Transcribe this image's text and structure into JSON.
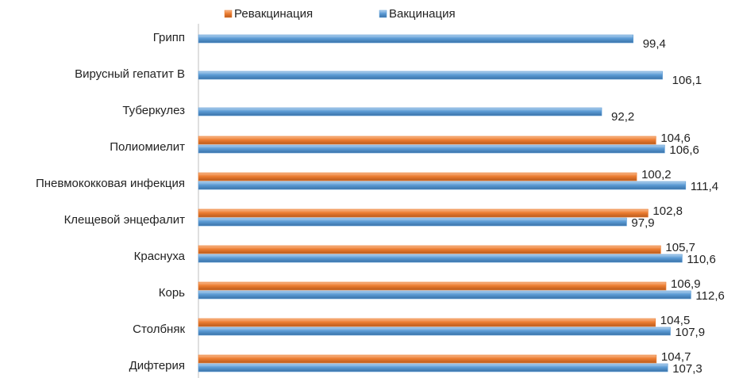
{
  "chart_data": {
    "type": "bar",
    "orientation": "horizontal",
    "categories": [
      "Грипп",
      "Вирусный гепатит В",
      "Туберкулез",
      "Полиомиелит",
      "Пневмококковая инфекция",
      "Клещевой энцефалит",
      "Краснуха",
      "Корь",
      "Столбняк",
      "Дифтерия"
    ],
    "series": [
      {
        "name": "Ревакцинация",
        "color": "#ed7d31",
        "values": [
          null,
          null,
          null,
          104.6,
          100.2,
          102.8,
          105.7,
          106.9,
          104.5,
          104.7
        ],
        "value_labels": [
          null,
          null,
          null,
          "104,6",
          "100,2",
          "102,8",
          "105,7",
          "106,9",
          "104,5",
          "104,7"
        ]
      },
      {
        "name": "Вакцинация",
        "color": "#5b9bd5",
        "values": [
          99.4,
          106.1,
          92.2,
          106.6,
          111.4,
          97.9,
          110.6,
          112.6,
          107.9,
          107.3
        ],
        "value_labels": [
          "99,4",
          "106,1",
          "92,2",
          "106,6",
          "111,4",
          "97,9",
          "110,6",
          "112,6",
          "107,9",
          "107,3"
        ]
      }
    ],
    "legend": "top"
  }
}
